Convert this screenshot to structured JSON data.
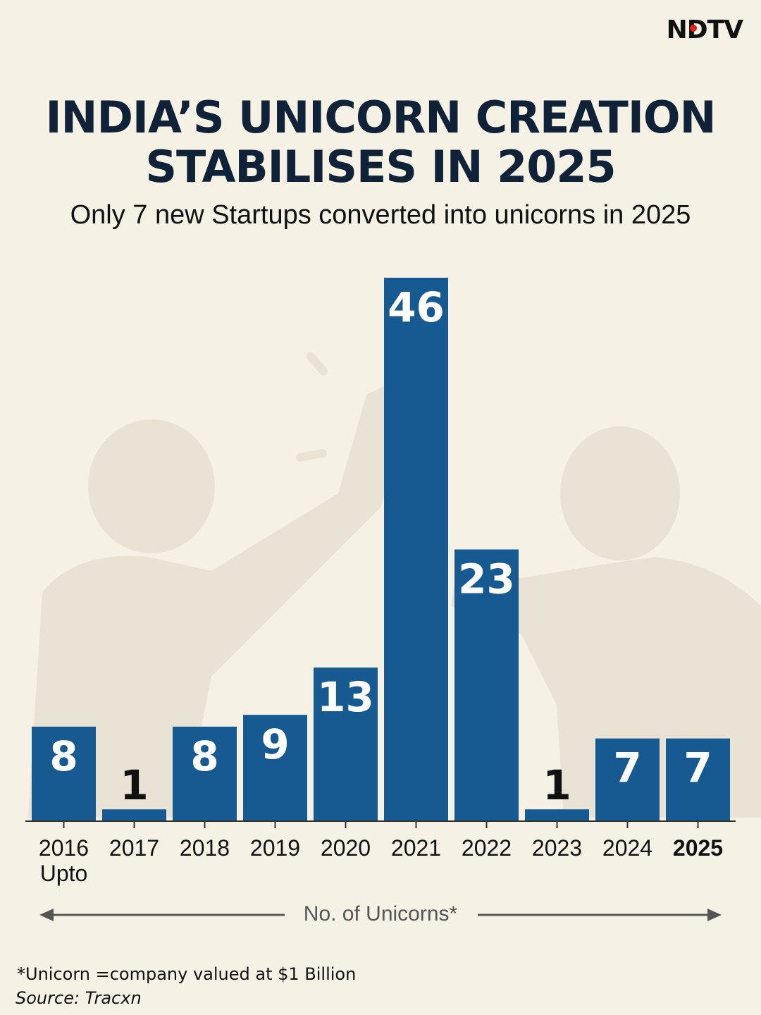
{
  "brand": {
    "logo_text": "NDTV"
  },
  "header": {
    "title_line1": "INDIA’S UNICORN CREATION",
    "title_line2": "STABILISES IN 2025",
    "subtitle": "Only 7 new Startups converted into unicorns in 2025"
  },
  "colors": {
    "background": "#f6f1e5",
    "bar": "#175a91",
    "title": "#0f2238",
    "label_inside": "#ffffff",
    "label_outside": "#111111",
    "logo_dot": "#e0201b"
  },
  "chart_data": {
    "type": "bar",
    "title": "INDIA’S UNICORN CREATION STABILISES IN 2025",
    "subtitle": "Only 7 new Startups converted into unicorns in 2025",
    "categories": [
      "2016\nUpto",
      "2017",
      "2018",
      "2019",
      "2020",
      "2021",
      "2022",
      "2023",
      "2024",
      "2025"
    ],
    "category_lines": [
      [
        "2016",
        "Upto"
      ],
      [
        "2017"
      ],
      [
        "2018"
      ],
      [
        "2019"
      ],
      [
        "2020"
      ],
      [
        "2021"
      ],
      [
        "2022"
      ],
      [
        "2023"
      ],
      [
        "2024"
      ],
      [
        "2025"
      ]
    ],
    "values": [
      8,
      1,
      8,
      9,
      13,
      46,
      23,
      1,
      7,
      7
    ],
    "highlight_category": "2025",
    "xlabel": "No. of Unicorns*",
    "ylabel": "",
    "ylim": [
      0,
      46
    ],
    "grid": false,
    "data_labels": true
  },
  "footer": {
    "footnote": "*Unicorn =company valued at $1 Billion",
    "source": "Source:  Tracxn"
  }
}
